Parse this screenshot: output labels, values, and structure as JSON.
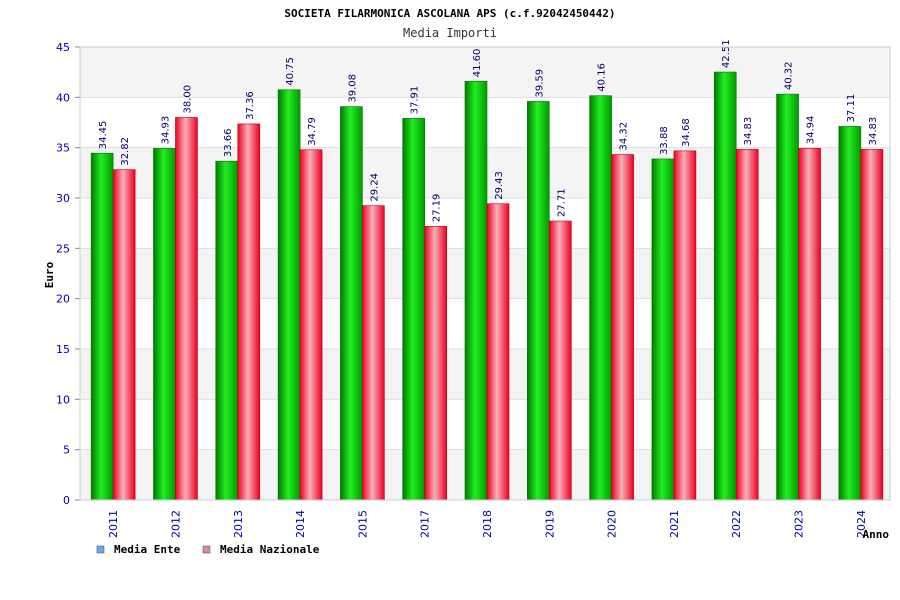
{
  "chart_data": {
    "type": "bar",
    "title": "SOCIETA FILARMONICA ASCOLANA APS (c.f.92042450442)",
    "subtitle": "Media Importi",
    "ylabel": "Euro",
    "xlabel": "Anno",
    "ylim": [
      0,
      45
    ],
    "yticks": [
      "0",
      "5",
      "10",
      "15",
      "20",
      "25",
      "30",
      "35",
      "40",
      "45"
    ],
    "categories": [
      "2011",
      "2012",
      "2013",
      "2014",
      "2015",
      "2017",
      "2018",
      "2019",
      "2020",
      "2021",
      "2022",
      "2023",
      "2024"
    ],
    "series": [
      {
        "name": "Media Ente",
        "color": "#00cc00",
        "values": [
          34.45,
          34.93,
          33.66,
          40.75,
          39.08,
          37.91,
          41.6,
          39.59,
          40.16,
          33.88,
          42.51,
          40.32,
          37.11
        ],
        "labels": [
          "34.45",
          "34.93",
          "33.66",
          "40.75",
          "39.08",
          "37.91",
          "41.60",
          "39.59",
          "40.16",
          "33.88",
          "42.51",
          "40.32",
          "37.11"
        ]
      },
      {
        "name": "Media Nazionale",
        "color": "#ee1133",
        "values": [
          32.82,
          38.0,
          37.36,
          34.79,
          29.24,
          27.19,
          29.43,
          27.71,
          34.32,
          34.68,
          34.83,
          34.94,
          34.83
        ],
        "labels": [
          "32.82",
          "38.00",
          "37.36",
          "34.79",
          "29.24",
          "27.19",
          "29.43",
          "27.71",
          "34.32",
          "34.68",
          "34.83",
          "34.94",
          "34.83"
        ]
      }
    ],
    "legend": {
      "placement": "bottom-left",
      "swatch_colors": [
        "#66aaee",
        "#dd88aa"
      ]
    },
    "grid": true,
    "band_colors": [
      "#f4f4f4",
      "#ffffff"
    ]
  }
}
